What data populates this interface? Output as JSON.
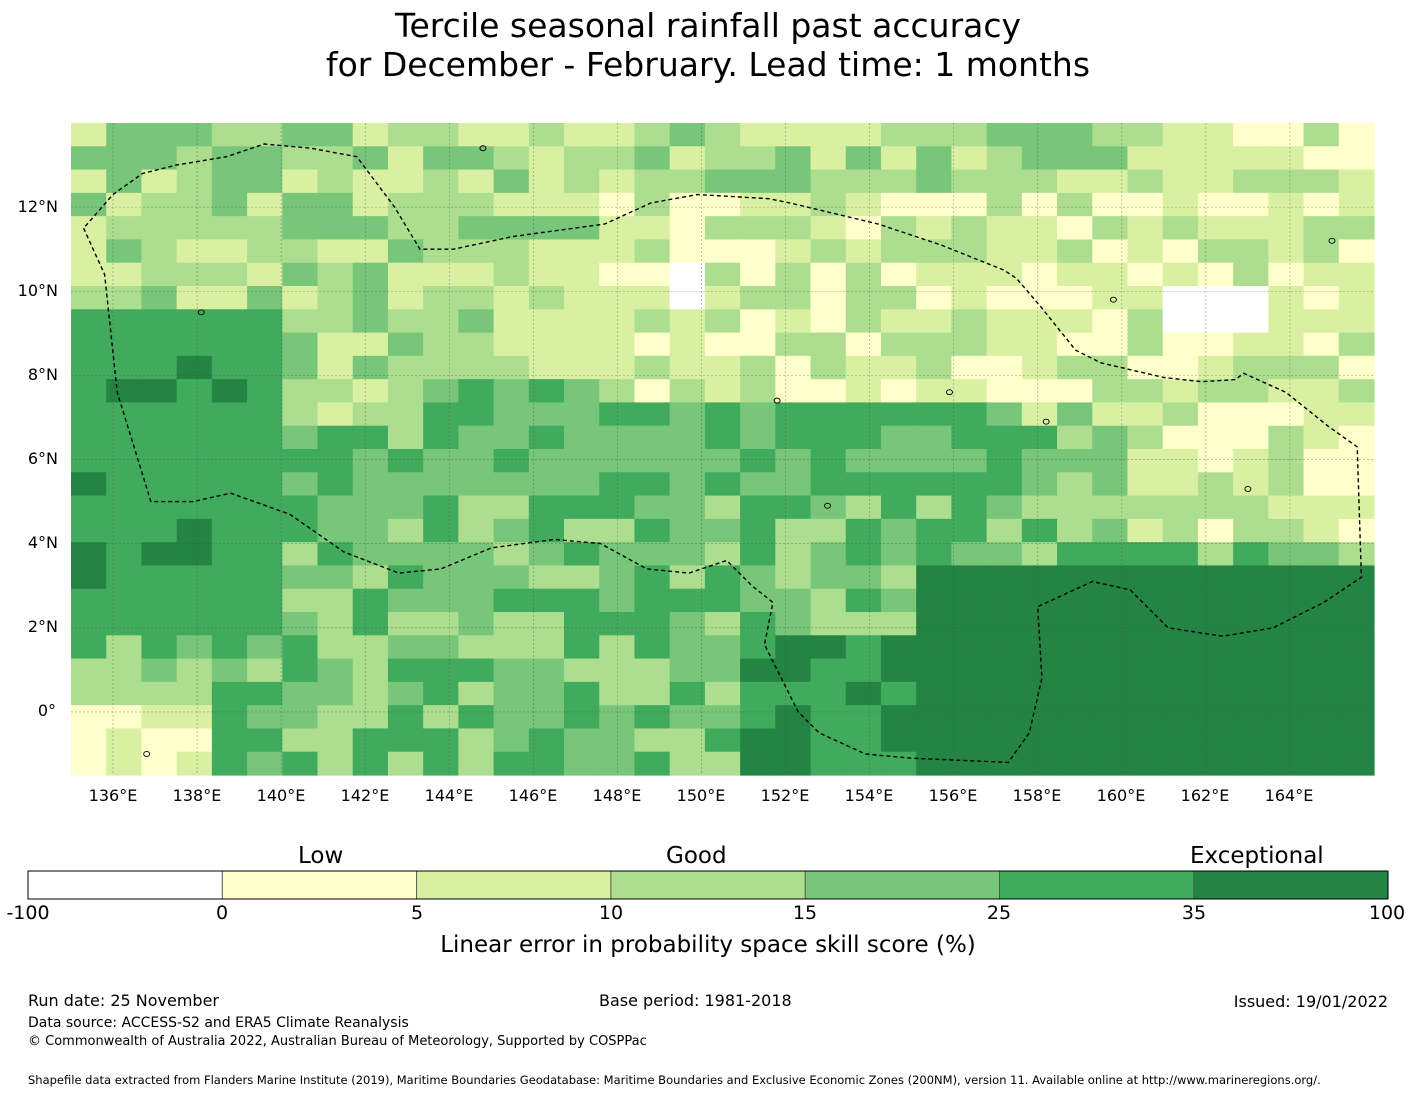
{
  "title": {
    "line1": "Tercile seasonal rainfall past accuracy",
    "line2": "for December - February. Lead time: 1 months"
  },
  "map": {
    "lon_range": [
      135,
      166
    ],
    "lat_range": [
      -1.5,
      14
    ],
    "lat_labels": [
      "12°N",
      "10°N",
      "8°N",
      "6°N",
      "4°N",
      "2°N",
      "0°"
    ],
    "lat_values": [
      12,
      10,
      8,
      6,
      4,
      2,
      0
    ],
    "lon_labels": [
      "136°E",
      "138°E",
      "140°E",
      "142°E",
      "144°E",
      "146°E",
      "148°E",
      "150°E",
      "152°E",
      "154°E",
      "156°E",
      "158°E",
      "160°E",
      "162°E",
      "164°E"
    ],
    "lon_values": [
      136,
      138,
      140,
      142,
      144,
      146,
      148,
      150,
      152,
      154,
      156,
      158,
      160,
      162,
      164
    ],
    "boundary_style": "dashed",
    "eez_boundary_lonlat": [
      [
        135.3,
        11.5
      ],
      [
        135.8,
        10.4
      ],
      [
        136.1,
        7.6
      ],
      [
        136.9,
        5.0
      ],
      [
        137.9,
        5.0
      ],
      [
        138.8,
        5.2
      ],
      [
        140.2,
        4.7
      ],
      [
        141.5,
        3.8
      ],
      [
        142.8,
        3.3
      ],
      [
        143.8,
        3.4
      ],
      [
        145.0,
        3.9
      ],
      [
        146.5,
        4.1
      ],
      [
        147.6,
        4.0
      ],
      [
        148.7,
        3.4
      ],
      [
        149.7,
        3.3
      ],
      [
        150.6,
        3.6
      ],
      [
        151.2,
        3.0
      ],
      [
        151.7,
        2.6
      ],
      [
        151.5,
        1.6
      ],
      [
        152.3,
        0.0
      ],
      [
        152.8,
        -0.5
      ],
      [
        153.9,
        -1.0
      ],
      [
        155.0,
        -1.1
      ],
      [
        157.3,
        -1.2
      ],
      [
        157.8,
        -0.5
      ],
      [
        158.1,
        0.8
      ],
      [
        158.0,
        2.5
      ],
      [
        159.3,
        3.1
      ],
      [
        160.2,
        2.9
      ],
      [
        161.1,
        2.0
      ],
      [
        162.4,
        1.8
      ],
      [
        163.6,
        2.0
      ],
      [
        164.8,
        2.6
      ],
      [
        165.7,
        3.2
      ],
      [
        165.6,
        6.3
      ],
      [
        164.9,
        6.8
      ],
      [
        163.9,
        7.6
      ],
      [
        162.9,
        8.05
      ],
      [
        162.7,
        7.9
      ],
      [
        161.9,
        7.85
      ],
      [
        161.0,
        7.95
      ],
      [
        159.5,
        8.3
      ],
      [
        158.9,
        8.6
      ],
      [
        158.1,
        9.6
      ],
      [
        157.5,
        10.3
      ],
      [
        157.2,
        10.5
      ],
      [
        155.7,
        11.1
      ],
      [
        154.2,
        11.6
      ],
      [
        152.1,
        12.1
      ],
      [
        151.6,
        12.2
      ],
      [
        149.9,
        12.3
      ],
      [
        148.8,
        12.1
      ],
      [
        147.7,
        11.6
      ],
      [
        145.5,
        11.3
      ],
      [
        144.1,
        11.0
      ],
      [
        143.3,
        11.0
      ],
      [
        142.7,
        12.0
      ],
      [
        141.8,
        13.2
      ],
      [
        140.7,
        13.4
      ],
      [
        139.6,
        13.5
      ],
      [
        138.7,
        13.2
      ],
      [
        137.5,
        13.0
      ],
      [
        136.7,
        12.8
      ],
      [
        136.0,
        12.3
      ],
      [
        135.3,
        11.5
      ]
    ]
  },
  "legend": {
    "category_labels": [
      "Low",
      "Good",
      "Exceptional"
    ],
    "tick_labels": [
      "-100",
      "0",
      "5",
      "10",
      "15",
      "25",
      "35",
      "100"
    ],
    "colors": [
      "#ffffff",
      "#ffffcc",
      "#d9f0a3",
      "#addd8e",
      "#78c679",
      "#41ab5d",
      "#238443"
    ],
    "title": "Linear error in probability space skill score (%)"
  },
  "footer": {
    "run_date": "Run date: 25 November",
    "base_period": "Base period: 1981-2018",
    "issued": "Issued: 19/01/2022",
    "data_source": "Data source: ACCESS-S2 and ERA5 Climate Reanalysis",
    "copyright": "© Commonwealth of Australia 2022, Australian Bureau of Meteorology, Supported by COSPPac",
    "shapefile": "Shapefile data extracted from Flanders Marine Institute (2019), Maritime Boundaries Geodatabase: Maritime Boundaries and Exclusive Economic Zones (200NM), version 11. Available online at http://www.marineregions.org/."
  }
}
